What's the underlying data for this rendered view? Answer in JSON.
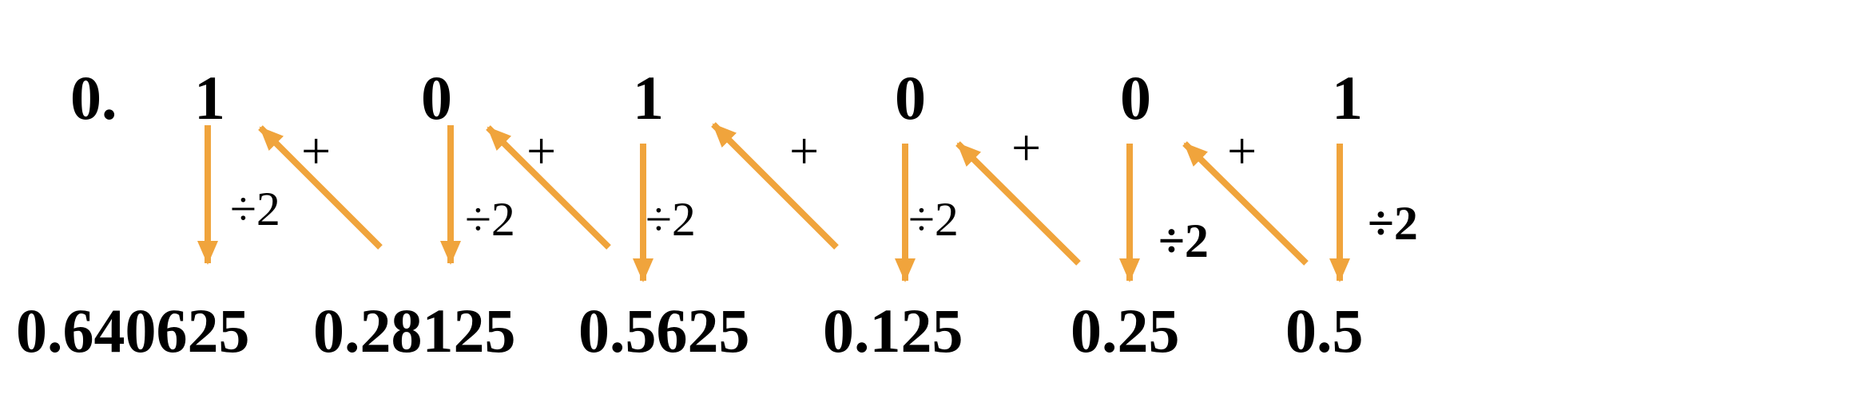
{
  "diagram": {
    "prefix": "0.",
    "bits": [
      "1",
      "0",
      "1",
      "0",
      "0",
      "1"
    ],
    "values": [
      "0.640625",
      "0.28125",
      "0.5625",
      "0.125",
      "0.25",
      "0.5"
    ],
    "plus_labels": [
      "+",
      "+",
      "+",
      "+",
      "+"
    ],
    "divide_labels": [
      "÷2",
      "÷2",
      "÷2",
      "÷2",
      "÷2",
      "÷2"
    ],
    "arrow_color": "#F0A43C"
  }
}
